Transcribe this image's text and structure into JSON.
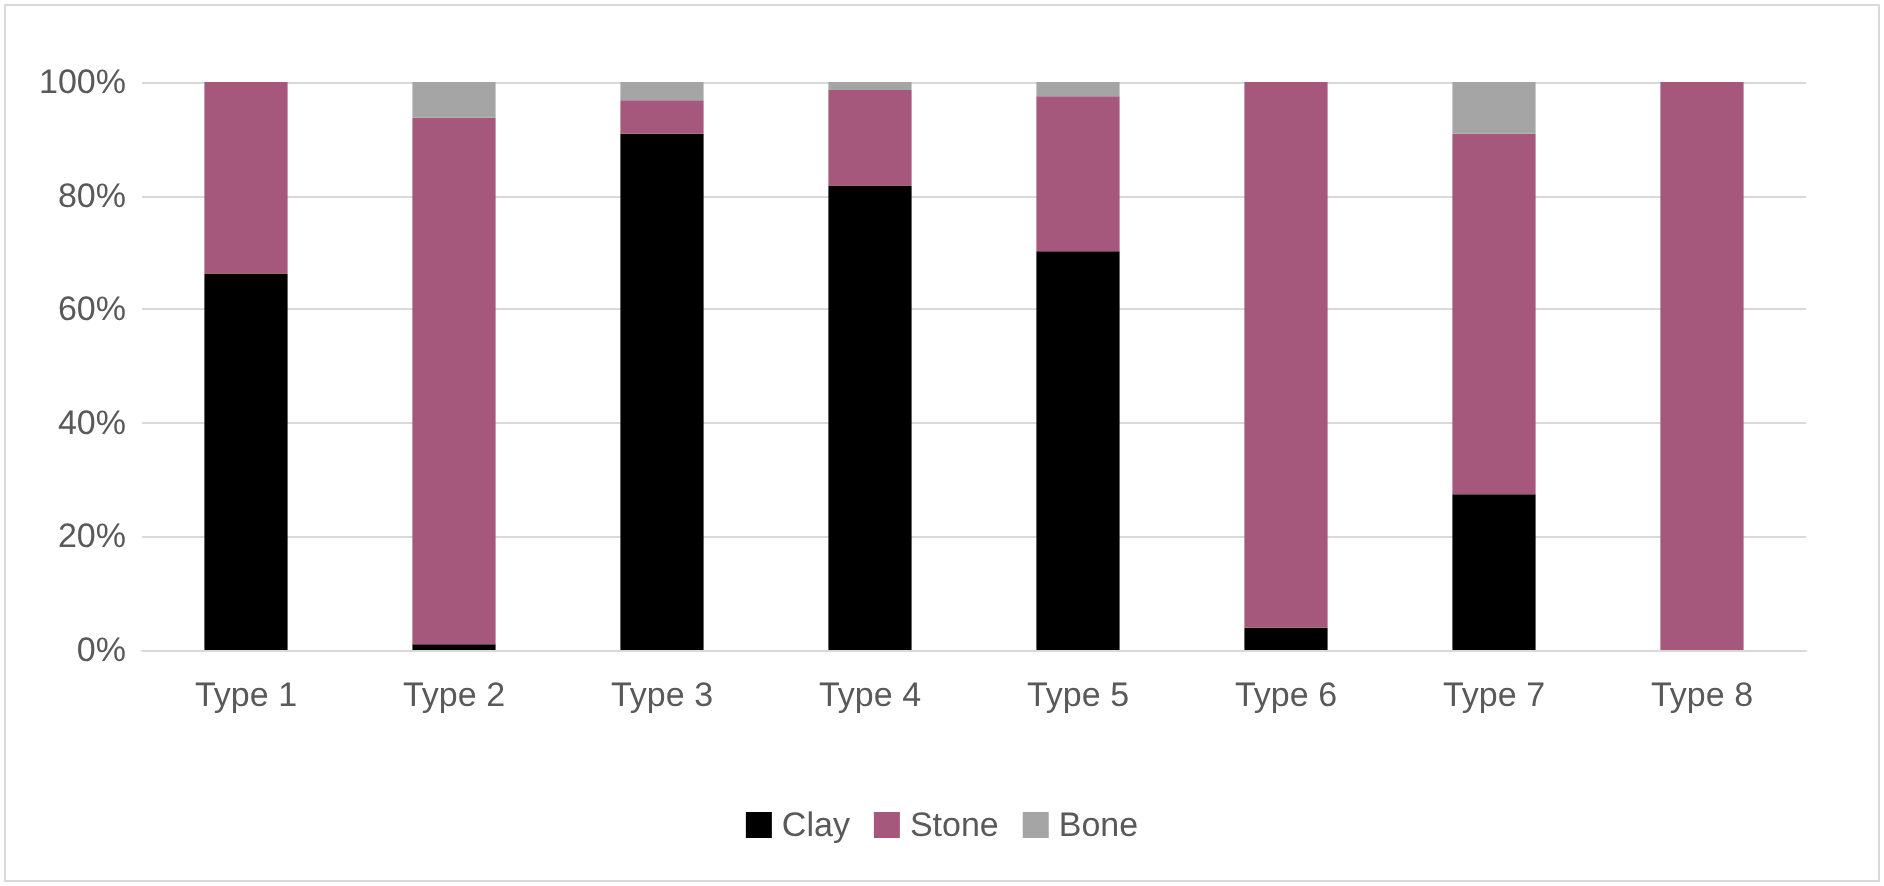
{
  "chart_data": {
    "type": "bar",
    "stacked": true,
    "categories": [
      "Type 1",
      "Type 2",
      "Type 3",
      "Type 4",
      "Type 5",
      "Type 6",
      "Type 7",
      "Type 8"
    ],
    "series": [
      {
        "name": "Clay",
        "color": "#000000",
        "values": [
          66.3,
          1,
          90.9,
          81.8,
          70.2,
          3.9,
          27.4,
          0
        ]
      },
      {
        "name": "Stone",
        "color": "#a5587b",
        "values": [
          33.7,
          92.7,
          5.9,
          16.8,
          27.3,
          96.1,
          63.5,
          100
        ]
      },
      {
        "name": "Bone",
        "color": "#a5a5a5",
        "values": [
          0,
          6.3,
          3.2,
          1.4,
          2.5,
          0,
          9.1,
          0
        ]
      }
    ],
    "ylim": [
      0,
      100
    ],
    "yticks": [
      {
        "value": 0,
        "label": "0%"
      },
      {
        "value": 20,
        "label": "20%"
      },
      {
        "value": 40,
        "label": "40%"
      },
      {
        "value": 60,
        "label": "60%"
      },
      {
        "value": 80,
        "label": "80%"
      },
      {
        "value": 100,
        "label": "100%"
      }
    ],
    "grid": "y",
    "legend": "bottom"
  }
}
